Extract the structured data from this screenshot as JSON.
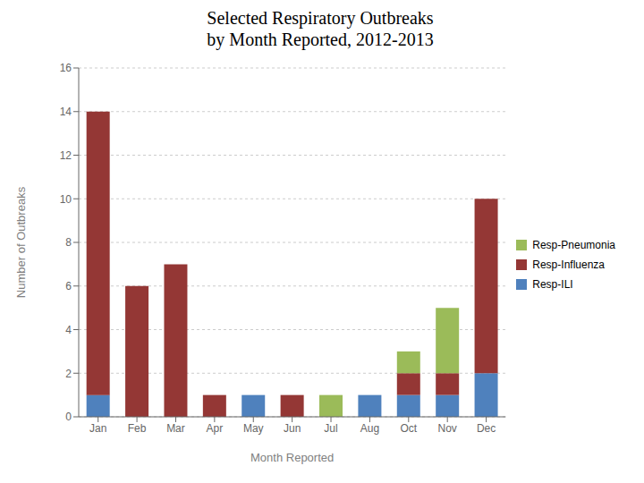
{
  "chart_data": {
    "type": "bar",
    "stacked": true,
    "title": "Selected Respiratory Outbreaks\nby Month Reported, 2012-2013",
    "xlabel": "Month Reported",
    "ylabel": "Number of Outbreaks",
    "categories": [
      "Jan",
      "Feb",
      "Mar",
      "Apr",
      "May",
      "Jun",
      "Jul",
      "Aug",
      "Oct",
      "Nov",
      "Dec"
    ],
    "series": [
      {
        "name": "Resp-ILI",
        "color": "#4F81BD",
        "values": [
          1,
          0,
          0,
          0,
          1,
          0,
          0,
          1,
          1,
          1,
          2
        ]
      },
      {
        "name": "Resp-Influenza",
        "color": "#943735",
        "values": [
          13,
          6,
          7,
          1,
          0,
          1,
          0,
          0,
          1,
          1,
          8
        ]
      },
      {
        "name": "Resp-Pneumonia",
        "color": "#9BBB59",
        "values": [
          0,
          0,
          0,
          0,
          0,
          0,
          1,
          0,
          1,
          3,
          0
        ]
      }
    ],
    "ylim": [
      0,
      16
    ],
    "yticks": [
      0,
      2,
      4,
      6,
      8,
      10,
      12,
      14,
      16
    ],
    "grid": true,
    "legend": "right"
  }
}
